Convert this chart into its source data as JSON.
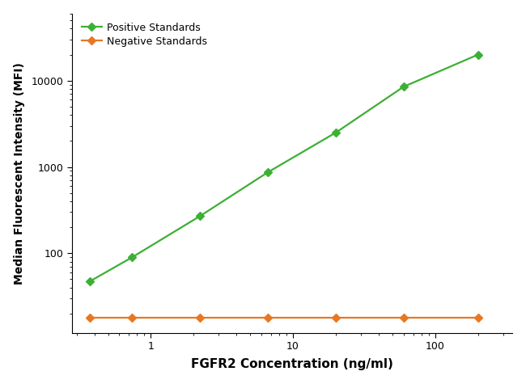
{
  "xlabel": "FGFR2 Concentration (ng/ml)",
  "ylabel": "Median Fluorescent Intensity (MFI)",
  "positive_x": [
    0.37,
    0.74,
    2.22,
    6.67,
    20.0,
    60.0,
    200.0
  ],
  "positive_y": [
    47,
    90,
    270,
    870,
    2500,
    8500,
    20000
  ],
  "negative_x": [
    0.37,
    0.74,
    2.22,
    6.67,
    20.0,
    60.0,
    200.0
  ],
  "negative_y": [
    18,
    18,
    18,
    18,
    18,
    18,
    18
  ],
  "positive_color": "#3cb034",
  "negative_color": "#e87722",
  "xlim": [
    0.28,
    350
  ],
  "ylim": [
    12,
    60000
  ],
  "legend_pos": "upper left",
  "positive_label": "Positive Standards",
  "negative_label": "Negative Standards",
  "marker": "D",
  "markersize": 5,
  "linewidth": 1.6,
  "background_color": "#ffffff",
  "yticks": [
    100,
    1000,
    10000
  ],
  "xticks": [
    1,
    10,
    100
  ],
  "xtick_labels": [
    "1",
    "10",
    "100"
  ],
  "ytick_labels": [
    "100",
    "1000",
    "10000"
  ],
  "xlabel_fontsize": 11,
  "ylabel_fontsize": 10,
  "tick_labelsize": 9,
  "legend_fontsize": 9
}
